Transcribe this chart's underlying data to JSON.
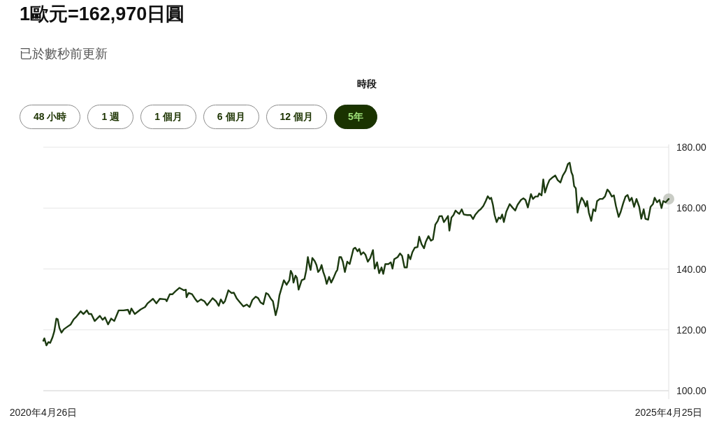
{
  "chart_data": {
    "type": "line",
    "title": "1歐元=162,970日圓",
    "subtitle": "已於數秒前更新",
    "annotations": [
      "時段",
      "48 小時",
      "1 週",
      "1 個月",
      "6 個月",
      "12 個月",
      "5年"
    ],
    "xlim": [
      "2020-04-26",
      "2025-04-25"
    ],
    "xticks": [
      {
        "value": "2020-04-26",
        "label": "2020年4月26日"
      },
      {
        "value": "2025-04-25",
        "label": "2025年4月25日"
      }
    ],
    "ylim": [
      100,
      180
    ],
    "yticks": [
      {
        "value": 100,
        "label": "100.00"
      },
      {
        "value": 120,
        "label": "120.00"
      },
      {
        "value": 140,
        "label": "140.00"
      },
      {
        "value": 160,
        "label": "160.00"
      },
      {
        "value": 180,
        "label": "180.00"
      }
    ],
    "grid": "y",
    "line_style": "solid",
    "series": [
      {
        "color": "#1c3a10",
        "x": [
          "2020-04-26",
          "2020-04-29",
          "2020-05-05",
          "2020-05-11",
          "2020-05-16",
          "2020-05-23",
          "2020-05-28",
          "2020-06-03",
          "2020-06-07",
          "2020-06-12",
          "2020-06-18",
          "2020-06-25",
          "2020-07-05",
          "2020-07-15",
          "2020-07-24",
          "2020-08-01",
          "2020-08-13",
          "2020-08-21",
          "2020-08-31",
          "2020-09-06",
          "2020-09-13",
          "2020-09-23",
          "2020-10-08",
          "2020-10-16",
          "2020-10-23",
          "2020-11-01",
          "2020-11-10",
          "2020-11-19",
          "2020-12-02",
          "2020-12-16",
          "2020-12-29",
          "2021-01-03",
          "2021-01-08",
          "2021-01-18",
          "2021-02-04",
          "2021-02-17",
          "2021-02-24",
          "2021-03-12",
          "2021-03-22",
          "2021-04-01",
          "2021-04-18",
          "2021-04-21",
          "2021-04-30",
          "2021-05-08",
          "2021-05-15",
          "2021-05-28",
          "2021-06-10",
          "2021-06-16",
          "2021-06-18",
          "2021-06-24",
          "2021-07-04",
          "2021-07-14",
          "2021-07-20",
          "2021-07-30",
          "2021-08-09",
          "2021-08-17",
          "2021-09-02",
          "2021-09-12",
          "2021-09-20",
          "2021-09-26",
          "2021-10-03",
          "2021-10-08",
          "2021-10-18",
          "2021-10-27",
          "2021-11-03",
          "2021-11-11",
          "2021-11-21",
          "2021-12-01",
          "2021-12-11",
          "2021-12-19",
          "2021-12-27",
          "2022-01-06",
          "2022-01-13",
          "2022-01-20",
          "2022-01-28",
          "2022-02-05",
          "2022-02-11",
          "2022-02-19",
          "2022-02-25",
          "2022-03-05",
          "2022-03-11",
          "2022-03-16",
          "2022-03-24",
          "2022-03-29",
          "2022-04-06",
          "2022-04-14",
          "2022-04-18",
          "2022-04-23",
          "2022-04-26",
          "2022-05-02",
          "2022-05-06",
          "2022-05-11",
          "2022-05-20",
          "2022-05-28",
          "2022-06-02",
          "2022-06-07",
          "2022-06-12",
          "2022-06-15",
          "2022-06-20",
          "2022-06-27",
          "2022-07-02",
          "2022-07-07",
          "2022-07-12",
          "2022-07-17",
          "2022-07-22",
          "2022-07-27",
          "2022-08-01",
          "2022-08-08",
          "2022-08-14",
          "2022-08-21",
          "2022-08-28",
          "2022-09-01",
          "2022-09-07",
          "2022-09-12",
          "2022-09-17",
          "2022-09-23",
          "2022-09-30",
          "2022-10-07",
          "2022-10-13",
          "2022-10-18",
          "2022-10-23",
          "2022-10-30",
          "2022-11-04",
          "2022-11-09",
          "2022-11-16",
          "2022-11-22",
          "2022-11-29",
          "2022-12-06",
          "2022-12-14",
          "2022-12-19",
          "2022-12-26",
          "2023-01-01",
          "2023-01-08",
          "2023-01-13",
          "2023-01-19",
          "2023-01-28",
          "2023-02-04",
          "2023-02-09",
          "2023-02-14",
          "2023-02-24",
          "2023-03-03",
          "2023-03-09",
          "2023-03-16",
          "2023-03-23",
          "2023-03-27",
          "2023-04-02",
          "2023-04-08",
          "2023-04-15",
          "2023-04-23",
          "2023-04-28",
          "2023-05-05",
          "2023-05-12",
          "2023-05-17",
          "2023-05-25",
          "2023-06-01",
          "2023-06-07",
          "2023-06-14",
          "2023-06-21",
          "2023-06-26",
          "2023-07-03",
          "2023-07-09",
          "2023-07-14",
          "2023-07-21",
          "2023-07-25",
          "2023-07-31",
          "2023-08-06",
          "2023-08-12",
          "2023-08-18",
          "2023-08-23",
          "2023-08-30",
          "2023-09-05",
          "2023-09-15",
          "2023-09-25",
          "2023-10-02",
          "2023-10-09",
          "2023-10-19",
          "2023-10-24",
          "2023-11-01",
          "2023-11-08",
          "2023-11-14",
          "2023-11-20",
          "2023-11-24",
          "2023-11-29",
          "2023-12-04",
          "2023-12-10",
          "2023-12-16",
          "2023-12-21",
          "2023-12-26",
          "2023-12-31",
          "2024-01-07",
          "2024-01-17",
          "2024-01-25",
          "2024-02-02",
          "2024-02-09",
          "2024-02-19",
          "2024-02-26",
          "2024-03-03",
          "2024-03-10",
          "2024-03-19",
          "2024-03-25",
          "2024-04-01",
          "2024-04-08",
          "2024-04-12",
          "2024-04-19",
          "2024-04-24",
          "2024-04-29",
          "2024-05-06",
          "2024-05-12",
          "2024-05-19",
          "2024-05-29",
          "2024-06-05",
          "2024-06-13",
          "2024-06-20",
          "2024-06-28",
          "2024-07-05",
          "2024-07-10",
          "2024-07-15",
          "2024-07-19",
          "2024-07-23",
          "2024-07-28",
          "2024-08-02",
          "2024-08-07",
          "2024-08-14",
          "2024-08-20",
          "2024-08-26",
          "2024-08-30",
          "2024-09-04",
          "2024-09-11",
          "2024-09-17",
          "2024-09-23",
          "2024-09-28",
          "2024-10-06",
          "2024-10-14",
          "2024-10-21",
          "2024-10-28",
          "2024-11-03",
          "2024-11-10",
          "2024-11-16",
          "2024-11-22",
          "2024-11-30",
          "2024-12-06",
          "2024-12-13",
          "2024-12-20",
          "2024-12-26",
          "2025-01-01",
          "2025-01-07",
          "2025-01-14",
          "2025-01-21",
          "2025-01-29",
          "2025-02-04",
          "2025-02-11",
          "2025-02-16",
          "2025-02-24",
          "2025-03-03",
          "2025-03-10",
          "2025-03-15",
          "2025-03-22",
          "2025-03-29",
          "2025-04-04",
          "2025-04-09",
          "2025-04-16",
          "2025-04-25"
        ],
        "values": [
          116.4,
          117.2,
          114.9,
          116.0,
          115.7,
          117.6,
          119.5,
          123.7,
          123.5,
          120.6,
          119.1,
          120.2,
          121.0,
          121.8,
          123.5,
          124.4,
          126.1,
          125.2,
          126.4,
          125.2,
          125.2,
          122.9,
          124.6,
          123.3,
          124.1,
          121.8,
          123.7,
          122.9,
          126.4,
          126.4,
          126.6,
          125.2,
          127.0,
          125.2,
          126.7,
          127.5,
          128.7,
          130.2,
          128.7,
          130.2,
          130.0,
          129.4,
          131.7,
          131.7,
          132.5,
          133.8,
          133.0,
          133.2,
          130.7,
          132.1,
          131.7,
          130.0,
          129.2,
          130.0,
          129.4,
          128.1,
          130.4,
          129.4,
          127.9,
          130.0,
          128.7,
          129.4,
          133.0,
          132.1,
          132.2,
          130.4,
          129.0,
          127.7,
          128.3,
          127.5,
          129.8,
          130.9,
          130.4,
          129.0,
          128.4,
          132.1,
          131.7,
          130.2,
          129.4,
          124.8,
          127.5,
          131.3,
          134.4,
          136.3,
          134.8,
          136.3,
          139.4,
          138.2,
          135.5,
          137.8,
          137.1,
          133.2,
          136.3,
          136.7,
          139.4,
          143.9,
          140.9,
          139.7,
          143.6,
          142.6,
          141.3,
          139.0,
          139.7,
          141.3,
          139.0,
          137.4,
          135.1,
          137.4,
          135.5,
          137.1,
          139.0,
          139.7,
          143.9,
          143.9,
          142.4,
          139.0,
          142.4,
          141.6,
          144.3,
          146.6,
          147.0,
          145.8,
          146.6,
          144.7,
          145.5,
          144.7,
          142.4,
          143.6,
          146.2,
          140.1,
          142.2,
          138.6,
          140.5,
          138.4,
          141.6,
          141.6,
          142.2,
          140.1,
          143.2,
          143.9,
          145.1,
          144.3,
          140.5,
          140.5,
          144.7,
          143.2,
          145.5,
          147.0,
          147.2,
          150.6,
          148.1,
          146.8,
          148.9,
          150.8,
          149.3,
          149.7,
          154.6,
          155.8,
          157.3,
          157.4,
          155.4,
          156.2,
          157.4,
          152.6,
          156.9,
          157.7,
          159.2,
          158.5,
          158.1,
          159.6,
          157.9,
          157.7,
          157.7,
          156.4,
          157.9,
          159.2,
          159.6,
          160.7,
          162.3,
          163.9,
          163.0,
          163.4,
          161.1,
          157.7,
          155.4,
          156.9,
          156.5,
          157.9,
          155.4,
          158.8,
          161.3,
          160.2,
          159.2,
          161.1,
          162.7,
          163.2,
          162.7,
          160.2,
          164.6,
          163.0,
          163.8,
          163.8,
          164.8,
          164.2,
          169.4,
          165.1,
          167.6,
          169.2,
          169.9,
          170.7,
          169.2,
          168.4,
          170.7,
          172.2,
          174.5,
          174.9,
          171.8,
          170.7,
          167.2,
          166.5,
          158.5,
          161.1,
          163.4,
          162.3,
          160.5,
          162.3,
          158.5,
          155.8,
          159.6,
          159.0,
          162.3,
          163.0,
          163.0,
          163.8,
          166.1,
          165.3,
          163.8,
          164.2,
          160.7,
          157.1,
          158.8,
          161.5,
          163.8,
          164.3,
          162.3,
          163.4,
          160.4,
          163.0,
          160.4,
          156.5,
          159.6,
          156.5,
          156.2,
          160.4,
          161.3,
          163.4,
          161.9,
          162.7,
          160.0,
          162.3,
          161.9,
          163.0
        ]
      },
      {
        "type": "scatter",
        "color": "#c3c7bf",
        "x": [
          "2025-04-25"
        ],
        "values": [
          163.0
        ]
      }
    ]
  }
}
